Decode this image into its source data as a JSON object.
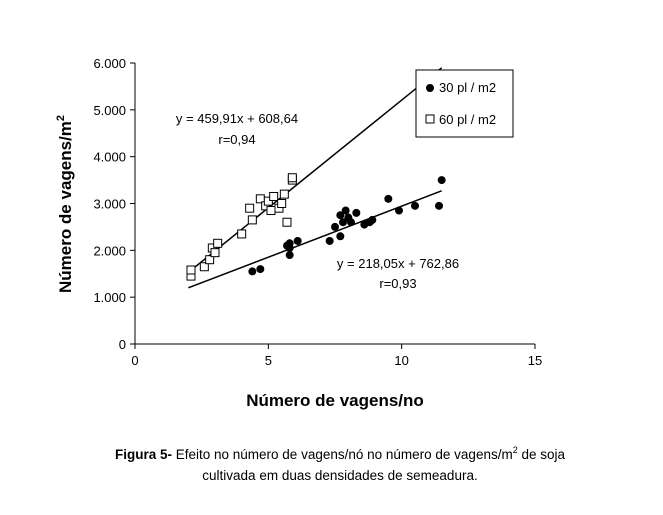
{
  "chart_data": {
    "type": "scatter",
    "xlabel": "Número de vagens/no",
    "ylabel_main": "Número de vagens/m",
    "ylabel_sup": "2",
    "xlim": [
      0,
      15
    ],
    "ylim": [
      0,
      6000
    ],
    "xticks": [
      0,
      5,
      10,
      15
    ],
    "xtick_labels": [
      "0",
      "5",
      "10",
      "15"
    ],
    "yticks": [
      0,
      1000,
      2000,
      3000,
      4000,
      5000,
      6000
    ],
    "ytick_labels": [
      "0",
      "1.000",
      "2.000",
      "3.000",
      "4.000",
      "5.000",
      "6.000"
    ],
    "grid": false,
    "legend_position": "top-right",
    "series": [
      {
        "name": "30 pl / m2",
        "marker": "filled-circle",
        "color": "#000000",
        "points": [
          [
            4.4,
            1550
          ],
          [
            4.7,
            1600
          ],
          [
            5.7,
            2100
          ],
          [
            5.8,
            2150
          ],
          [
            5.8,
            1900
          ],
          [
            5.8,
            2050
          ],
          [
            6.1,
            2200
          ],
          [
            7.3,
            2200
          ],
          [
            7.5,
            2500
          ],
          [
            7.7,
            2750
          ],
          [
            7.7,
            2300
          ],
          [
            7.8,
            2600
          ],
          [
            7.9,
            2850
          ],
          [
            8.0,
            2700
          ],
          [
            8.1,
            2600
          ],
          [
            8.3,
            2800
          ],
          [
            8.6,
            2550
          ],
          [
            8.8,
            2600
          ],
          [
            8.9,
            2650
          ],
          [
            9.5,
            3100
          ],
          [
            9.9,
            2850
          ],
          [
            10.5,
            2950
          ],
          [
            11.4,
            2950
          ],
          [
            11.5,
            3500
          ]
        ],
        "trend": {
          "equation": "y = 218,05x + 762,86",
          "r": "r=0,93",
          "slope": 218.05,
          "intercept": 762.86,
          "x_from": 2.0,
          "x_to": 11.5
        }
      },
      {
        "name": "60 pl / m2",
        "marker": "open-square",
        "color": "#000000",
        "points": [
          [
            2.1,
            1450
          ],
          [
            2.1,
            1580
          ],
          [
            2.6,
            1650
          ],
          [
            2.8,
            1800
          ],
          [
            2.9,
            2050
          ],
          [
            3.0,
            1950
          ],
          [
            3.1,
            2150
          ],
          [
            4.0,
            2350
          ],
          [
            4.3,
            2900
          ],
          [
            4.4,
            2650
          ],
          [
            4.7,
            3100
          ],
          [
            4.9,
            2950
          ],
          [
            5.0,
            3050
          ],
          [
            5.1,
            2850
          ],
          [
            5.2,
            3150
          ],
          [
            5.4,
            2900
          ],
          [
            5.5,
            3000
          ],
          [
            5.6,
            3200
          ],
          [
            5.7,
            2600
          ],
          [
            5.9,
            3500
          ],
          [
            5.9,
            3550
          ]
        ],
        "trend": {
          "equation": "y = 459,91x + 608,64",
          "r": "r=0,94",
          "slope": 459.91,
          "intercept": 608.64,
          "x_from": 2.0,
          "x_to": 11.5
        }
      }
    ]
  },
  "caption": {
    "label": "Figura 5-",
    "text_before_sup": " Efeito no número de vagens/nó no número de vagens/m",
    "sup": "2",
    "text_after_sup": " de soja",
    "line2": "cultivada em duas densidades de semeadura."
  }
}
